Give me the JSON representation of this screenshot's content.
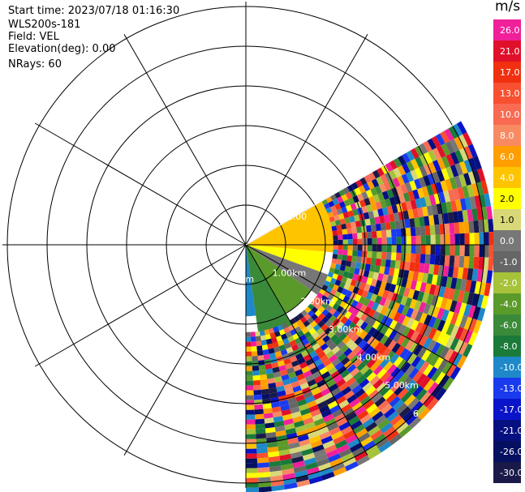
{
  "header": {
    "start_time": "Start time: 2023/07/18 01:16:30",
    "instrument": "WLS200s-181",
    "field": "Field: VEL",
    "elevation": "Elevation(deg): 0.00",
    "nrays": "NRays: 60"
  },
  "colorbar": {
    "unit": "m/s",
    "levels": [
      {
        "label": "26.0",
        "color": "#f0209a"
      },
      {
        "label": "21.0",
        "color": "#e0102a"
      },
      {
        "label": "17.0",
        "color": "#f03010"
      },
      {
        "label": "13.0",
        "color": "#f85030"
      },
      {
        "label": "10.0",
        "color": "#f86a52"
      },
      {
        "label": "8.0",
        "color": "#f88a62"
      },
      {
        "label": "6.0",
        "color": "#ff9e00"
      },
      {
        "label": "4.0",
        "color": "#ffc400"
      },
      {
        "label": "2.0",
        "color": "#ffff00"
      },
      {
        "label": "1.0",
        "color": "#d8d878"
      },
      {
        "label": "0.0",
        "color": "#777777"
      },
      {
        "label": "-1.0",
        "color": "#666666"
      },
      {
        "label": "-2.0",
        "color": "#a6c23a"
      },
      {
        "label": "-4.0",
        "color": "#5a9a2a"
      },
      {
        "label": "-6.0",
        "color": "#3a8a3a"
      },
      {
        "label": "-8.0",
        "color": "#1a7a3a"
      },
      {
        "label": "-10.0",
        "color": "#1e88c8"
      },
      {
        "label": "-13.0",
        "color": "#1a3aee"
      },
      {
        "label": "-17.0",
        "color": "#0a14c8"
      },
      {
        "label": "-21.0",
        "color": "#061080"
      },
      {
        "label": "-26.0",
        "color": "#061060"
      },
      {
        "label": "-30.0",
        "color": "#1a1a4a"
      }
    ]
  },
  "chart_data": {
    "type": "heatmap",
    "projection": "polar (PPI scan)",
    "field": "VEL",
    "unit": "m/s",
    "azimuth_range_deg": [
      60,
      180
    ],
    "range_rings": [
      "1.00km",
      "2.00km",
      "3.00km",
      "4.00km",
      "5.00km",
      "6"
    ],
    "ring_labels_upper": [
      "2.00"
    ],
    "ring_label_left": "km",
    "spokes_every_deg": 30,
    "sectors": [
      {
        "az_from": 60,
        "az_to": 95,
        "r_from_km": 0,
        "r_to_km": 2.2,
        "value": 4.0
      },
      {
        "az_from": 95,
        "az_to": 110,
        "r_from_km": 0,
        "r_to_km": 2.0,
        "value": 2.0
      },
      {
        "az_from": 110,
        "az_to": 125,
        "r_from_km": 0,
        "r_to_km": 2.2,
        "value": 0.0
      },
      {
        "az_from": 125,
        "az_to": 150,
        "r_from_km": 0,
        "r_to_km": 2.0,
        "value": -4.0
      },
      {
        "az_from": 150,
        "az_to": 172,
        "r_from_km": 0,
        "r_to_km": 2.6,
        "value": -6.0
      },
      {
        "az_from": 172,
        "az_to": 180,
        "r_from_km": 0,
        "r_to_km": 1.8,
        "value": -10.0
      }
    ],
    "noisy_outer_region": {
      "from_km": 2.2,
      "to_km": 6.2,
      "values": "mixed −30.0 to 26.0"
    }
  }
}
